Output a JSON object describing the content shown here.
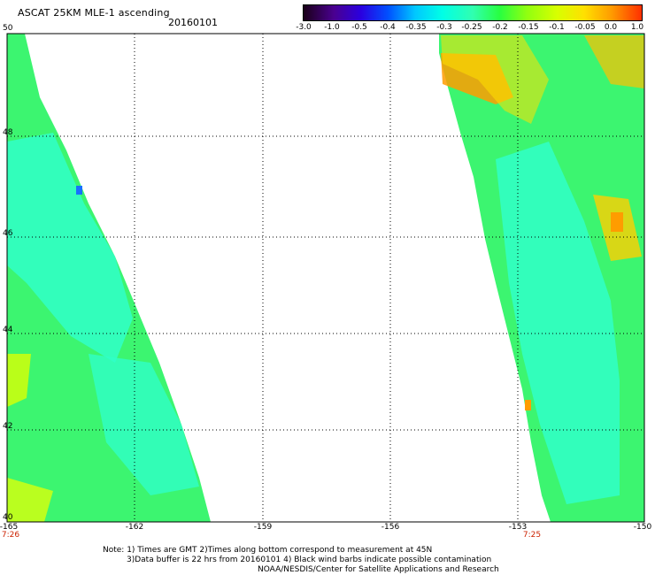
{
  "header": {
    "title": "ASCAT 25KM MLE-1 ascending",
    "date": "20160101"
  },
  "colorbar": {
    "ticks": [
      "-3.0",
      "-1.0",
      "-0.5",
      "-0.4",
      "-0.35",
      "-0.3",
      "-0.25",
      "-0.2",
      "-0.15",
      "-0.1",
      "-0.05",
      "0.0",
      "1.0"
    ],
    "colors": [
      "#1a0018",
      "#5500a0",
      "#0010ff",
      "#0070ff",
      "#00c8ff",
      "#00ffee",
      "#30ffb0",
      "#28ff40",
      "#90ff10",
      "#d8ff00",
      "#ffe000",
      "#ff9c00",
      "#ff3000"
    ]
  },
  "map": {
    "lat_labels": [
      "50",
      "48",
      "46",
      "44",
      "42",
      "40"
    ],
    "lon_labels": [
      "-165",
      "-162",
      "-159",
      "-156",
      "-153",
      "-150"
    ],
    "swath_times": [
      "7:26",
      "7:25"
    ]
  },
  "notes": {
    "line1": "Note: 1) Times are GMT 2)Times along bottom correspond to measurement at 45N",
    "line2": "3)Data buffer is 22 hrs from 20160101 4) Black wind barbs indicate possible contamination",
    "line3": "NOAA/NESDIS/Center for Satellite Applications and Research"
  }
}
